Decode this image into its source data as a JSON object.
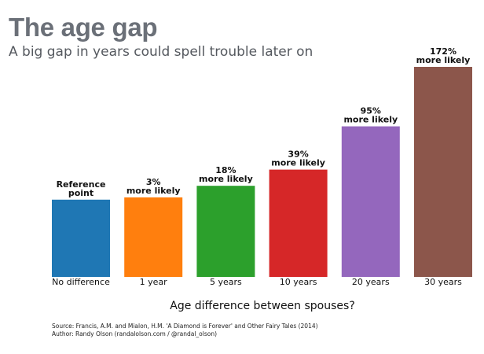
{
  "header": {
    "title": "The age gap",
    "subtitle": "A big gap in years could spell trouble later on"
  },
  "chart_data": {
    "type": "bar",
    "title": "The age gap",
    "subtitle": "A big gap in years could spell trouble later on",
    "xlabel": "Age difference between spouses?",
    "ylabel": "",
    "categories": [
      "No difference",
      "1 year",
      "5 years",
      "10 years",
      "20 years",
      "30 years"
    ],
    "values": [
      100,
      103,
      118,
      139,
      195,
      272
    ],
    "data_labels": [
      [
        "Reference",
        "point"
      ],
      [
        "3%",
        "more likely"
      ],
      [
        "18%",
        "more likely"
      ],
      [
        "39%",
        "more likely"
      ],
      [
        "95%",
        "more likely"
      ],
      [
        "172%",
        "more likely"
      ]
    ],
    "colors": [
      "#1f77b4",
      "#ff7f0e",
      "#2ca02c",
      "#d62728",
      "#9467bd",
      "#8c564b"
    ],
    "ylim": [
      0,
      272
    ],
    "grid": false,
    "legend": "none"
  },
  "footer": {
    "source_line": "Source: Francis, A.M. and Mialon, H.M. 'A Diamond is Forever' and Other Fairy Tales (2014)",
    "author_line": "Author: Randy Olson (randalolson.com / @randal_olson)"
  }
}
